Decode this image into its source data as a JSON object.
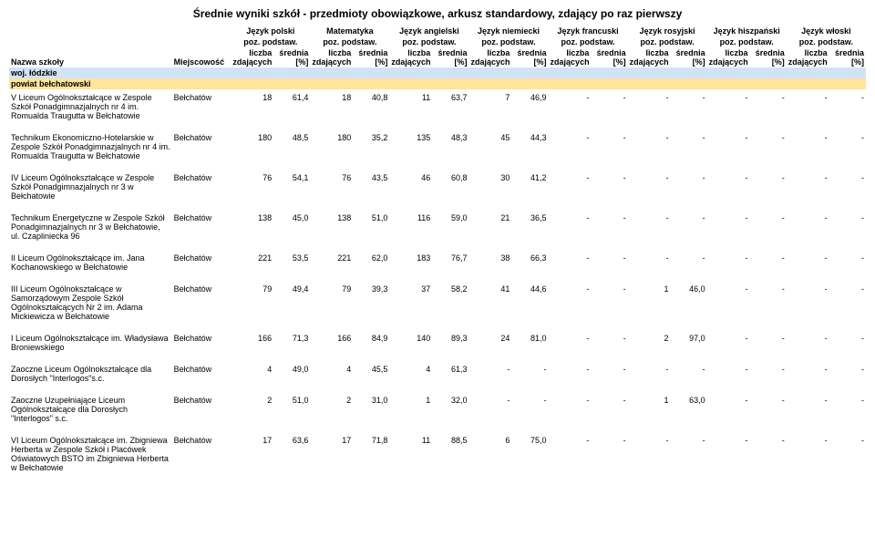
{
  "title": "Średnie wyniki szkół  - przedmioty obowiązkowe, arkusz standardowy, zdający po raz pierwszy",
  "columns": {
    "name": "Nazwa szkoły",
    "city": "Miejscowość",
    "subjects": [
      {
        "name": "Język polski",
        "sub": "poz. podstaw."
      },
      {
        "name": "Matematyka",
        "sub": "poz. podstaw."
      },
      {
        "name": "Język angielski",
        "sub": "poz. podstaw."
      },
      {
        "name": "Język niemiecki",
        "sub": "poz. podstaw."
      },
      {
        "name": "Język francuski",
        "sub": "poz. podstaw."
      },
      {
        "name": "Język rosyjski",
        "sub": "poz. podstaw."
      },
      {
        "name": "Język hiszpański",
        "sub": "poz. podstaw."
      },
      {
        "name": "Język włoski",
        "sub": "poz. podstaw."
      }
    ],
    "count_label": "liczba zdających",
    "avg_label": "średnia [%]"
  },
  "woj": "woj. łódzkie",
  "powiat": "powiat bełchatowski",
  "rows": [
    {
      "name": "V Liceum Ogólnokształcące w Zespole Szkół Ponadgimnazjalnych nr 4 im. Romualda Traugutta w Bełchatowie",
      "city": "Bełchatów",
      "v": [
        "18",
        "61,4",
        "18",
        "40,8",
        "11",
        "63,7",
        "7",
        "46,9",
        "-",
        "-",
        "-",
        "-",
        "-",
        "-",
        "-",
        "-"
      ]
    },
    {
      "name": "Technikum Ekonomiczno-Hotelarskie w Zespole Szkół Ponadgimnazjalnych nr 4 im. Romualda Traugutta w Bełchatowie",
      "city": "Bełchatów",
      "v": [
        "180",
        "48,5",
        "180",
        "35,2",
        "135",
        "48,3",
        "45",
        "44,3",
        "-",
        "-",
        "-",
        "-",
        "-",
        "-",
        "-",
        "-"
      ]
    },
    {
      "name": "IV Liceum Ogólnokształcące w Zespole Szkół Ponadgimnazjalnych nr 3 w Bełchatowie",
      "city": "Bełchatów",
      "v": [
        "76",
        "54,1",
        "76",
        "43,5",
        "46",
        "60,8",
        "30",
        "41,2",
        "-",
        "-",
        "-",
        "-",
        "-",
        "-",
        "-",
        "-"
      ]
    },
    {
      "name": "Technikum Energetyczne w Zespole Szkół Ponadgimnazjalnych nr 3 w Bełchatowie, ul. Czapliniecka 96",
      "city": "Bełchatów",
      "v": [
        "138",
        "45,0",
        "138",
        "51,0",
        "116",
        "59,0",
        "21",
        "36,5",
        "-",
        "-",
        "-",
        "-",
        "-",
        "-",
        "-",
        "-"
      ]
    },
    {
      "name": "II Liceum Ogólnokształcące im. Jana Kochanowskiego w Bełchatowie",
      "city": "Bełchatów",
      "v": [
        "221",
        "53,5",
        "221",
        "62,0",
        "183",
        "76,7",
        "38",
        "66,3",
        "-",
        "-",
        "-",
        "-",
        "-",
        "-",
        "-",
        "-"
      ]
    },
    {
      "name": "III Liceum Ogólnokształcące w Samorządowym Zespole Szkół Ogólnokształcących Nr 2 im. Adama Mickiewicza w Bełchatowie",
      "city": "Bełchatów",
      "v": [
        "79",
        "49,4",
        "79",
        "39,3",
        "37",
        "58,2",
        "41",
        "44,6",
        "-",
        "-",
        "1",
        "46,0",
        "-",
        "-",
        "-",
        "-"
      ]
    },
    {
      "name": "I Liceum Ogólnokształcące im. Władysława Broniewskiego",
      "city": "Bełchatów",
      "v": [
        "166",
        "71,3",
        "166",
        "84,9",
        "140",
        "89,3",
        "24",
        "81,0",
        "-",
        "-",
        "2",
        "97,0",
        "-",
        "-",
        "-",
        "-"
      ]
    },
    {
      "name": "Zaoczne Liceum Ogólnokształcące dla Dorosłych \"Interlogos\"s.c.",
      "city": "Bełchatów",
      "v": [
        "4",
        "49,0",
        "4",
        "45,5",
        "4",
        "61,3",
        "-",
        "-",
        "-",
        "-",
        "-",
        "-",
        "-",
        "-",
        "-",
        "-"
      ]
    },
    {
      "name": "Zaoczne Uzupełniające Liceum Ogólnokształcące dla Dorosłych \"Interlogos\" s.c.",
      "city": "Bełchatów",
      "v": [
        "2",
        "51,0",
        "2",
        "31,0",
        "1",
        "32,0",
        "-",
        "-",
        "-",
        "-",
        "1",
        "63,0",
        "-",
        "-",
        "-",
        "-"
      ]
    },
    {
      "name": "VI Liceum Ogólnokształcące im. Zbigniewa Herberta w Zespole Szkół i Placówek Oświatowych BSTO im Zbigniewa Herberta  w Bełchatowie",
      "city": "Bełchatów",
      "v": [
        "17",
        "63,6",
        "17",
        "71,8",
        "11",
        "88,5",
        "6",
        "75,0",
        "-",
        "-",
        "-",
        "-",
        "-",
        "-",
        "-",
        "-"
      ]
    }
  ],
  "colors": {
    "woj_bg": "#d0e4f5",
    "pow_bg": "#ffe49c"
  }
}
